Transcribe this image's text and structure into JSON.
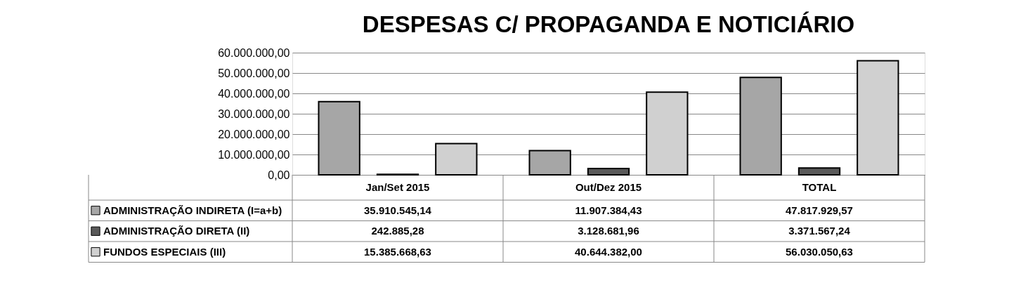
{
  "chart_data": {
    "type": "bar",
    "title": "DESPESAS C/ PROPAGANDA E NOTICIÁRIO",
    "categories": [
      "Jan/Set 2015",
      "Out/Dez 2015",
      "TOTAL"
    ],
    "series": [
      {
        "name": "ADMINISTRAÇÃO INDIRETA (I=a+b)",
        "color": "#a6a6a6",
        "values": [
          35910545.14,
          11907384.43,
          47817929.57
        ],
        "value_labels": [
          "35.910.545,14",
          "11.907.384,43",
          "47.817.929,57"
        ]
      },
      {
        "name": "ADMINISTRAÇÃO DIRETA (II)",
        "color": "#595959",
        "values": [
          242885.28,
          3128681.96,
          3371567.24
        ],
        "value_labels": [
          "242.885,28",
          "3.128.681,96",
          "3.371.567,24"
        ]
      },
      {
        "name": "FUNDOS ESPECIAIS (III)",
        "color": "#d0d0d0",
        "values": [
          15385668.63,
          40644382.0,
          56030050.63
        ],
        "value_labels": [
          "15.385.668,63",
          "40.644.382,00",
          "56.030.050,63"
        ]
      }
    ],
    "ylim": [
      0,
      60000000
    ],
    "yticks": [
      {
        "value": 0,
        "label": "0,00"
      },
      {
        "value": 10000000,
        "label": "10.000.000,00"
      },
      {
        "value": 20000000,
        "label": "20.000.000,00"
      },
      {
        "value": 30000000,
        "label": "30.000.000,00"
      },
      {
        "value": 40000000,
        "label": "40.000.000,00"
      },
      {
        "value": 50000000,
        "label": "50.000.000,00"
      },
      {
        "value": 60000000,
        "label": "60.000.000,00"
      }
    ],
    "grid": "y",
    "legend": "bottom"
  }
}
